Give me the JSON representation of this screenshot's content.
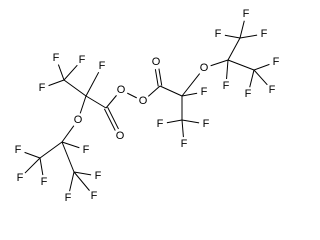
{
  "atoms": [
    "O",
    "O",
    "O",
    "F",
    "F",
    "F",
    "F",
    "O",
    "F",
    "F",
    "F",
    "F",
    "F",
    "F",
    "F",
    "O",
    "F",
    "F",
    "F",
    "F",
    "O",
    "F",
    "F",
    "F",
    "F",
    "F",
    "F",
    "F"
  ]
}
